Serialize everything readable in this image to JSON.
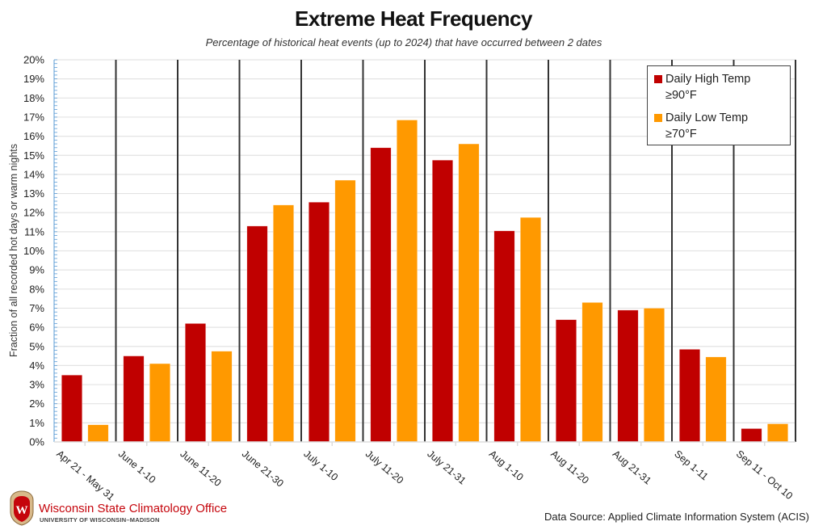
{
  "header": {
    "title": "Extreme Heat Frequency",
    "subtitle": "Percentage of historical heat events (up to 2024) that have occurred between 2 dates"
  },
  "footer": {
    "org_name": "Wisconsin State Climatology Office",
    "org_sub": "UNIVERSITY OF WISCONSIN–MADISON",
    "logo_icon": "uw-crest-icon",
    "data_source": "Data Source: Applied Climate Information System (ACIS)"
  },
  "colors": {
    "high": "#c00000",
    "low": "#ff9900",
    "grid": "#e3e3e3",
    "divider": "#333333",
    "axis": "#5b9bd5"
  },
  "chart_data": {
    "type": "bar",
    "title": "Extreme Heat Frequency",
    "subtitle": "Percentage of historical heat events (up to 2024) that have occurred between 2 dates",
    "xlabel": "",
    "ylabel": "Fraction of all recorded hot days or warm nights",
    "ylim": [
      0,
      20
    ],
    "yticks": [
      0,
      1,
      2,
      3,
      4,
      5,
      6,
      7,
      8,
      9,
      10,
      11,
      12,
      13,
      14,
      15,
      16,
      17,
      18,
      19,
      20
    ],
    "ytick_labels": [
      "0%",
      "1%",
      "2%",
      "3%",
      "4%",
      "5%",
      "6%",
      "7%",
      "8%",
      "9%",
      "10%",
      "11%",
      "12%",
      "13%",
      "14%",
      "15%",
      "16%",
      "17%",
      "18%",
      "19%",
      "20%"
    ],
    "grid": true,
    "legend_position": "top-right",
    "categories": [
      "Apr 21 - May 31",
      "June 1-10",
      "June 11-20",
      "June 21-30",
      "July 1-10",
      "July 11-20",
      "July 21-31",
      "Aug 1-10",
      "Aug 11-20",
      "Aug 21-31",
      "Sep 1-11",
      "Sep 11 - Oct 10"
    ],
    "series": [
      {
        "name": "Daily High Temp ≥90°F",
        "legend_line1": "Daily High Temp",
        "legend_line2": "≥90°F",
        "color": "#c00000",
        "values": [
          3.5,
          4.5,
          6.2,
          11.3,
          12.55,
          15.4,
          14.75,
          11.05,
          6.4,
          6.9,
          4.85,
          0.7
        ]
      },
      {
        "name": "Daily Low Temp ≥70°F",
        "legend_line1": "Daily Low Temp",
        "legend_line2": "≥70°F",
        "color": "#ff9900",
        "values": [
          0.9,
          4.1,
          4.75,
          12.4,
          13.7,
          16.85,
          15.6,
          11.75,
          7.3,
          7.0,
          4.45,
          0.95
        ]
      }
    ]
  }
}
